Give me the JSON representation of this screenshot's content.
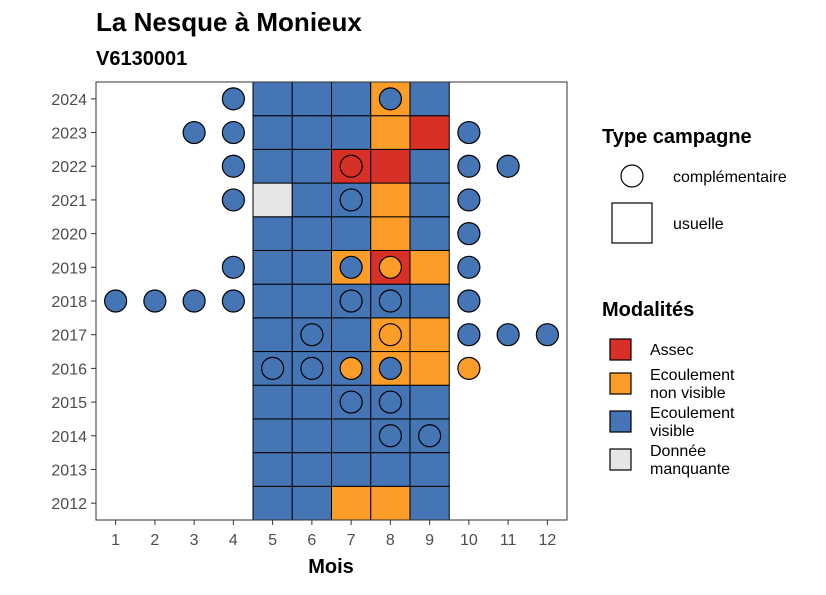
{
  "chart_data": {
    "type": "heatmap",
    "title": "La Nesque à Monieux",
    "subtitle": "V6130001",
    "xlabel": "Mois",
    "ylabel": "",
    "x_ticks": [
      1,
      2,
      3,
      4,
      5,
      6,
      7,
      8,
      9,
      10,
      11,
      12
    ],
    "y_ticks": [
      2012,
      2013,
      2014,
      2015,
      2016,
      2017,
      2018,
      2019,
      2020,
      2021,
      2022,
      2023,
      2024
    ],
    "xlim": [
      0.5,
      12.5
    ],
    "ylim": [
      2011.5,
      2024.5
    ],
    "grid": false,
    "modalites": {
      "title": "Modalités",
      "categories": [
        {
          "key": "A",
          "label_lines": [
            "Assec"
          ],
          "color": "#d73027"
        },
        {
          "key": "N",
          "label_lines": [
            "Ecoulement",
            "non visible"
          ],
          "color": "#fc9d2a"
        },
        {
          "key": "V",
          "label_lines": [
            "Ecoulement",
            "visible"
          ],
          "color": "#4575b4"
        },
        {
          "key": "M",
          "label_lines": [
            "Donnée",
            "manquante"
          ],
          "color": "#e6e6e6"
        }
      ]
    },
    "type_campagne": {
      "title": "Type campagne",
      "items": [
        {
          "shape": "circle",
          "label": "complémentaire"
        },
        {
          "shape": "square",
          "label": "usuelle"
        }
      ]
    },
    "usuelle_months": [
      5,
      6,
      7,
      8,
      9
    ],
    "usuelle": {
      "2024": [
        "V",
        "V",
        "V",
        "N",
        "V"
      ],
      "2023": [
        "V",
        "V",
        "V",
        "N",
        "A"
      ],
      "2022": [
        "V",
        "V",
        "A",
        "A",
        "V"
      ],
      "2021": [
        "M",
        "V",
        "V",
        "N",
        "V"
      ],
      "2020": [
        "V",
        "V",
        "V",
        "N",
        "V"
      ],
      "2019": [
        "V",
        "V",
        "N",
        "A",
        "N"
      ],
      "2018": [
        "V",
        "V",
        "V",
        "V",
        "V"
      ],
      "2017": [
        "V",
        "V",
        "V",
        "N",
        "N"
      ],
      "2016": [
        "V",
        "V",
        "V",
        "N",
        "N"
      ],
      "2015": [
        "V",
        "V",
        "V",
        "V",
        "V"
      ],
      "2014": [
        "V",
        "V",
        "V",
        "V",
        "V"
      ],
      "2013": [
        "V",
        "V",
        "V",
        "V",
        "V"
      ],
      "2012": [
        "V",
        "V",
        "N",
        "N",
        "V"
      ]
    },
    "complementaire": [
      {
        "year": 2024,
        "month": 4,
        "mod": "V"
      },
      {
        "year": 2024,
        "month": 8,
        "mod": "V"
      },
      {
        "year": 2023,
        "month": 3,
        "mod": "V"
      },
      {
        "year": 2023,
        "month": 4,
        "mod": "V"
      },
      {
        "year": 2023,
        "month": 10,
        "mod": "V"
      },
      {
        "year": 2022,
        "month": 4,
        "mod": "V"
      },
      {
        "year": 2022,
        "month": 7,
        "mod": "A"
      },
      {
        "year": 2022,
        "month": 10,
        "mod": "V"
      },
      {
        "year": 2022,
        "month": 11,
        "mod": "V"
      },
      {
        "year": 2021,
        "month": 4,
        "mod": "V"
      },
      {
        "year": 2021,
        "month": 7,
        "mod": "V"
      },
      {
        "year": 2021,
        "month": 10,
        "mod": "V"
      },
      {
        "year": 2020,
        "month": 10,
        "mod": "V"
      },
      {
        "year": 2019,
        "month": 4,
        "mod": "V"
      },
      {
        "year": 2019,
        "month": 7,
        "mod": "V"
      },
      {
        "year": 2019,
        "month": 8,
        "mod": "N"
      },
      {
        "year": 2019,
        "month": 10,
        "mod": "V"
      },
      {
        "year": 2018,
        "month": 1,
        "mod": "V"
      },
      {
        "year": 2018,
        "month": 2,
        "mod": "V"
      },
      {
        "year": 2018,
        "month": 3,
        "mod": "V"
      },
      {
        "year": 2018,
        "month": 4,
        "mod": "V"
      },
      {
        "year": 2018,
        "month": 7,
        "mod": "V"
      },
      {
        "year": 2018,
        "month": 8,
        "mod": "V"
      },
      {
        "year": 2018,
        "month": 10,
        "mod": "V"
      },
      {
        "year": 2017,
        "month": 6,
        "mod": "V"
      },
      {
        "year": 2017,
        "month": 8,
        "mod": "N"
      },
      {
        "year": 2017,
        "month": 10,
        "mod": "V"
      },
      {
        "year": 2017,
        "month": 11,
        "mod": "V"
      },
      {
        "year": 2017,
        "month": 12,
        "mod": "V"
      },
      {
        "year": 2016,
        "month": 5,
        "mod": "V"
      },
      {
        "year": 2016,
        "month": 6,
        "mod": "V"
      },
      {
        "year": 2016,
        "month": 7,
        "mod": "N"
      },
      {
        "year": 2016,
        "month": 8,
        "mod": "V"
      },
      {
        "year": 2016,
        "month": 10,
        "mod": "N"
      },
      {
        "year": 2015,
        "month": 7,
        "mod": "V"
      },
      {
        "year": 2015,
        "month": 8,
        "mod": "V"
      },
      {
        "year": 2014,
        "month": 8,
        "mod": "V"
      },
      {
        "year": 2014,
        "month": 9,
        "mod": "V"
      }
    ]
  }
}
